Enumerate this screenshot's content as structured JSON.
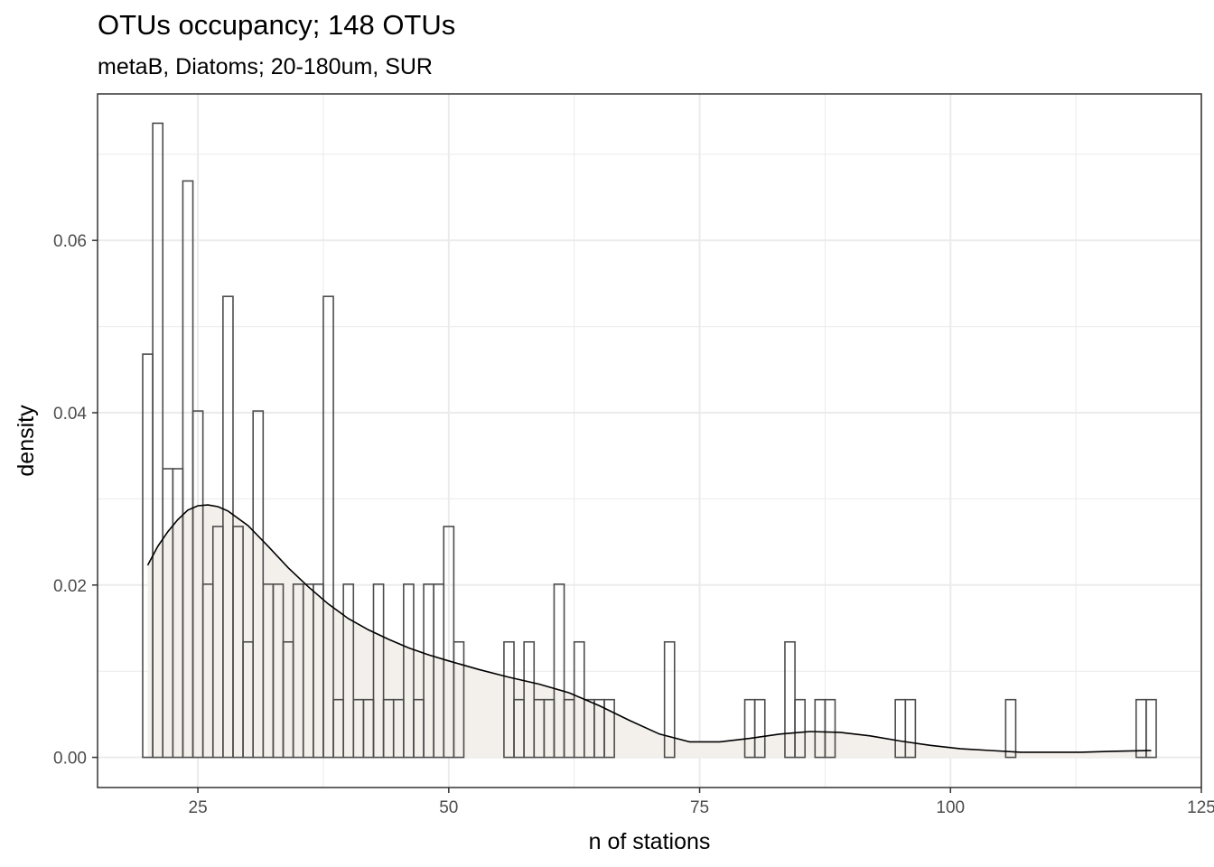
{
  "chart_data": {
    "type": "bar",
    "title": "OTUs occupancy; 148 OTUs",
    "subtitle": "metaB, Diatoms; 20-180um, SUR",
    "xlabel": "n of stations",
    "ylabel": "density",
    "xlim": [
      15,
      125
    ],
    "ylim": [
      -0.0035,
      0.077
    ],
    "xticks": [
      25,
      50,
      75,
      100,
      125
    ],
    "xtick_labels": [
      "25",
      "50",
      "75",
      "100",
      "125"
    ],
    "yticks": [
      0.0,
      0.02,
      0.04,
      0.06
    ],
    "ytick_labels": [
      "0.00",
      "0.02",
      "0.04",
      "0.06"
    ],
    "grid": true,
    "bin_start": 19.5,
    "bin_width": 1,
    "histogram_density": [
      0.0468,
      0.0736,
      0.0335,
      0.0335,
      0.0669,
      0.0402,
      0.0201,
      0.0268,
      0.0535,
      0.0268,
      0.0134,
      0.0402,
      0.0201,
      0.0201,
      0.0134,
      0.0201,
      0.0201,
      0.0201,
      0.0535,
      0.0067,
      0.0201,
      0.0067,
      0.0067,
      0.0201,
      0.0067,
      0.0067,
      0.0201,
      0.0067,
      0.0201,
      0.0201,
      0.0268,
      0.0134,
      0.0,
      0.0,
      0.0,
      0.0,
      0.0134,
      0.0067,
      0.0134,
      0.0067,
      0.0067,
      0.0201,
      0.0067,
      0.0134,
      0.0067,
      0.0067,
      0.0067,
      0.0,
      0.0,
      0.0,
      0.0,
      0.0,
      0.0134,
      0.0,
      0.0,
      0.0,
      0.0,
      0.0,
      0.0,
      0.0,
      0.0067,
      0.0067,
      0.0,
      0.0,
      0.0134,
      0.0067,
      0.0,
      0.0067,
      0.0067,
      0.0,
      0.0,
      0.0,
      0.0,
      0.0,
      0.0,
      0.0067,
      0.0067,
      0.0,
      0.0,
      0.0,
      0.0,
      0.0,
      0.0,
      0.0,
      0.0,
      0.0,
      0.0067,
      0.0,
      0.0,
      0.0,
      0.0,
      0.0,
      0.0,
      0.0,
      0.0,
      0.0,
      0.0,
      0.0,
      0.0,
      0.0067,
      0.0067
    ],
    "density_curve": {
      "x": [
        20,
        21,
        22,
        23,
        24,
        25,
        26,
        27,
        28,
        30,
        32,
        34,
        36,
        38,
        40,
        42,
        44,
        46,
        48,
        50,
        53,
        56,
        59,
        62,
        65,
        68,
        71,
        74,
        77,
        80,
        83,
        86,
        89,
        92,
        95,
        98,
        101,
        104,
        107,
        110,
        113,
        116,
        120
      ],
      "y": [
        0.0223,
        0.0245,
        0.0262,
        0.0276,
        0.0287,
        0.0292,
        0.0293,
        0.0291,
        0.0286,
        0.0269,
        0.0245,
        0.022,
        0.0198,
        0.0178,
        0.0161,
        0.0148,
        0.0137,
        0.0127,
        0.0119,
        0.0112,
        0.0102,
        0.0093,
        0.0085,
        0.0075,
        0.006,
        0.0043,
        0.0027,
        0.0018,
        0.0018,
        0.0022,
        0.0027,
        0.003,
        0.0029,
        0.0025,
        0.0019,
        0.0014,
        0.001,
        0.0008,
        0.0006,
        0.0006,
        0.0006,
        0.0007,
        0.0008
      ]
    },
    "colors": {
      "bar_stroke": "#4d4d4d",
      "density_fill": "#f3efea",
      "density_line": "#000000",
      "grid": "#ebebeb",
      "panel_border": "#333333"
    }
  }
}
